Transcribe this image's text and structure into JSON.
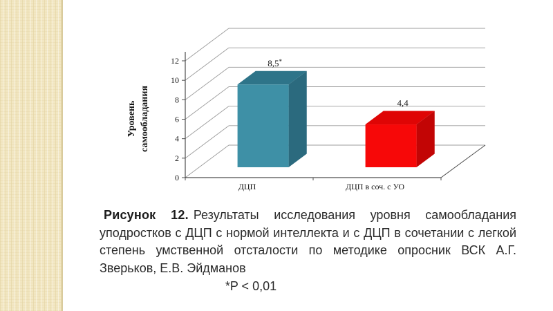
{
  "slide": {
    "background": "#ffffff",
    "stripe_color": "#f2e7c3"
  },
  "chart_data": {
    "type": "bar",
    "variant": "3d-column",
    "title": "",
    "categories": [
      "ДЦП",
      "ДЦП в соч. с УО"
    ],
    "values": [
      8.5,
      4.4
    ],
    "value_labels": [
      {
        "text": "8,5",
        "sup": "*"
      },
      {
        "text": "4,4",
        "sup": ""
      }
    ],
    "ylabel_lines": [
      "Уровень",
      "самообладания"
    ],
    "xlabel": "",
    "yticks": [
      0,
      2,
      4,
      6,
      8,
      10,
      12
    ],
    "ylim": [
      0,
      12
    ],
    "grid": true,
    "legend": "none",
    "bar_colors": [
      {
        "front": "#3E90A6",
        "top": "#2E7489",
        "side": "#2B6A7E"
      },
      {
        "front": "#F70808",
        "top": "#DF0505",
        "side": "#C20505"
      }
    ],
    "line_color": "#9c9c9c",
    "axis_color": "#4d4d4d"
  },
  "caption": {
    "label": "Рисунок 12.",
    "text": "Результаты исследования уровня самообладания уподростков с ДЦП с нормой интеллекта и с ДЦП в сочетании с легкой степень умственной отсталости по методике опросник ВСК А.Г. Зверьков, Е.В. Эйдманов",
    "pvalue": "*P < 0,01"
  }
}
